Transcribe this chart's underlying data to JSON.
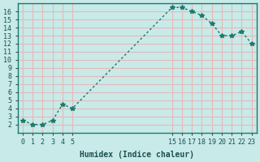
{
  "x": [
    0,
    1,
    2,
    3,
    4,
    5,
    15,
    16,
    17,
    18,
    19,
    20,
    21,
    22,
    23
  ],
  "y": [
    2.5,
    2.0,
    2.0,
    2.5,
    4.5,
    4.0,
    16.5,
    16.5,
    16.0,
    15.5,
    14.5,
    13.0,
    13.0,
    13.5,
    12.0
  ],
  "line_color": "#1a7a6e",
  "marker": "*",
  "bg_color": "#c8eae8",
  "grid_color": "#e8b8b8",
  "xlabel": "Humidex (Indice chaleur)",
  "ylabel": "",
  "xlim": [
    -0.5,
    23.5
  ],
  "ylim": [
    1,
    17
  ],
  "yticks": [
    2,
    3,
    4,
    5,
    6,
    7,
    8,
    9,
    10,
    11,
    12,
    13,
    14,
    15,
    16
  ],
  "xticks": [
    0,
    1,
    2,
    3,
    4,
    5,
    15,
    16,
    17,
    18,
    19,
    20,
    21,
    22,
    23
  ],
  "title_color": "#1a7a6e",
  "font_color": "#1a5050"
}
